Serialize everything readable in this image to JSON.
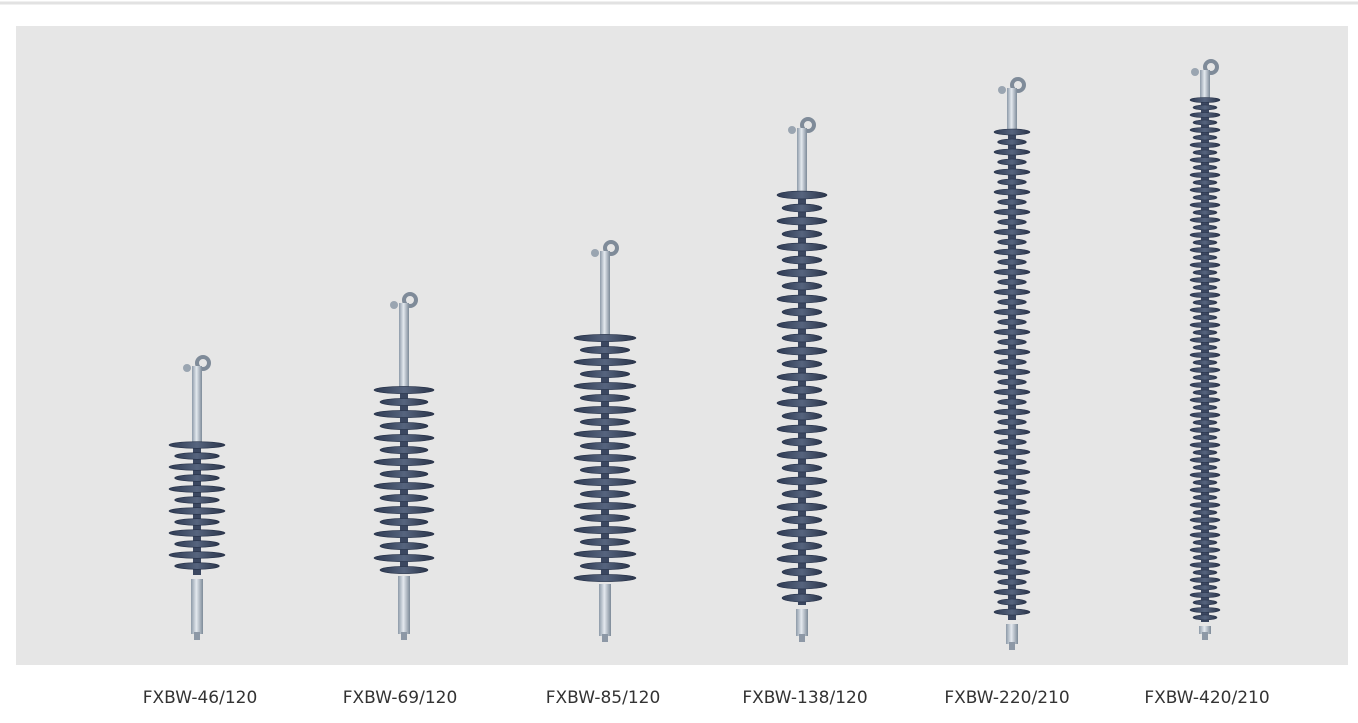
{
  "products": [
    {
      "label": "FXBW-46/120"
    },
    {
      "label": "FXBW-69/120"
    },
    {
      "label": "FXBW-85/120"
    },
    {
      "label": "FXBW-138/120"
    },
    {
      "label": "FXBW-220/210"
    },
    {
      "label": "FXBW-420/210"
    }
  ]
}
